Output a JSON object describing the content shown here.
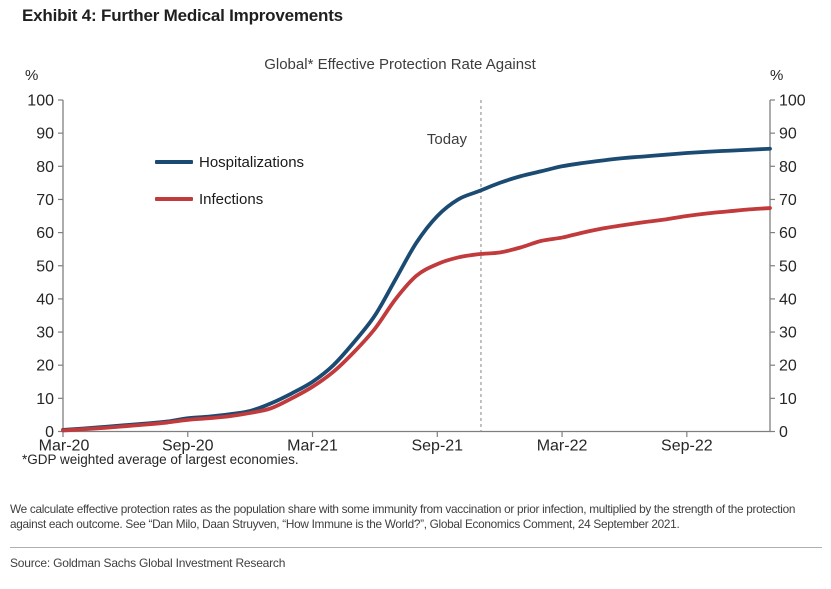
{
  "page": {
    "exhibit_title": "Exhibit 4: Further Medical Improvements",
    "footnote": "*GDP weighted average of largest economies.",
    "note": "We calculate effective protection rates as the population share with some immunity from vaccination or prior infection, multiplied by the strength of the protection against each outcome. See “Dan Milo, Daan Struyven, “How Immune is the World?”, Global Economics Comment, 24 September 2021.",
    "source": "Source: Goldman Sachs Global Investment Research"
  },
  "chart_data": {
    "type": "line",
    "title": "Global* Effective Protection Rate Against",
    "y_axis_unit": "%",
    "ylim": [
      0,
      100
    ],
    "y_ticks": [
      0,
      10,
      20,
      30,
      40,
      50,
      60,
      70,
      80,
      90,
      100
    ],
    "x_tick_labels": [
      "Mar-20",
      "Sep-20",
      "Mar-21",
      "Sep-21",
      "Mar-22",
      "Sep-22"
    ],
    "x_tick_month_index": [
      0,
      6,
      12,
      18,
      24,
      30
    ],
    "x_monthly_from": "Mar-20",
    "x_monthly_to": "Jan-23",
    "months_total": 34,
    "grid": false,
    "legend_position": "upper left",
    "annotation": {
      "label": "Today",
      "month_index": 20.1
    },
    "series": [
      {
        "name": "Hospitalizations",
        "color": "#1b4a73",
        "values": [
          0.5,
          0.9,
          1.4,
          1.9,
          2.4,
          3,
          4,
          4.5,
          5.2,
          6.2,
          8.5,
          11.5,
          15,
          20,
          27,
          35,
          46,
          57,
          65,
          70,
          72.5,
          75,
          77,
          78.5,
          80,
          81,
          81.8,
          82.5,
          83,
          83.5,
          84,
          84.4,
          84.7,
          85,
          85.3
        ]
      },
      {
        "name": "Infections",
        "color": "#c13a3c",
        "values": [
          0.3,
          0.7,
          1.1,
          1.6,
          2.1,
          2.7,
          3.5,
          4,
          4.6,
          5.6,
          7,
          10,
          13.5,
          18,
          24,
          31,
          40,
          47,
          50.5,
          52.5,
          53.5,
          54,
          55.5,
          57.5,
          58.5,
          60,
          61.3,
          62.3,
          63.2,
          64,
          65,
          65.8,
          66.4,
          67,
          67.4
        ]
      }
    ]
  }
}
